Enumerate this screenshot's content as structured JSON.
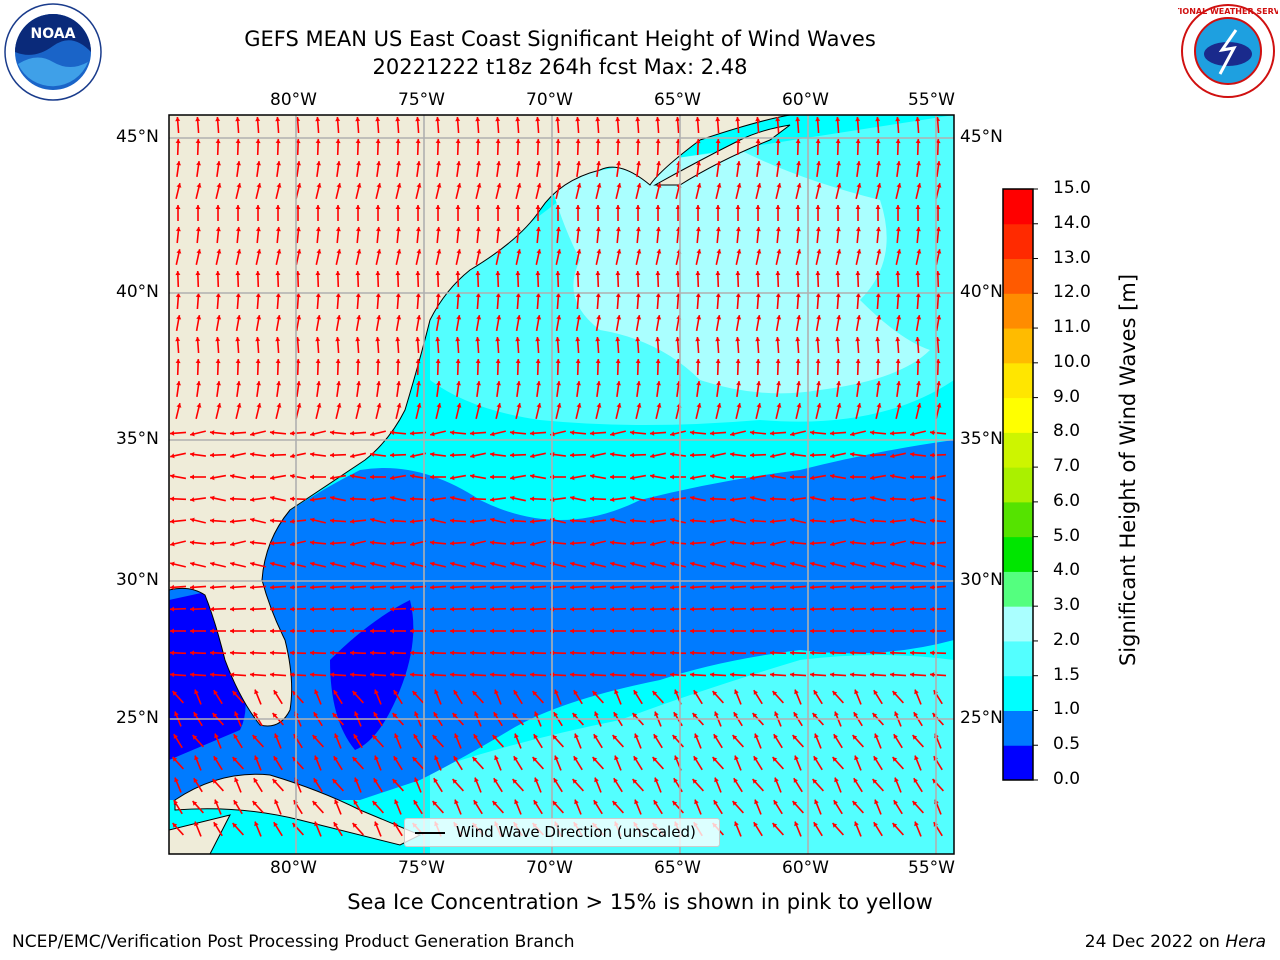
{
  "title": {
    "line1": "GEFS MEAN US East Coast Significant Height of Wind Waves",
    "line2": "20221222 t18z 264h fcst   Max: 2.48"
  },
  "map": {
    "lon_ticks": [
      "80°W",
      "75°W",
      "70°W",
      "65°W",
      "60°W",
      "55°W"
    ],
    "lat_ticks": [
      "45°N",
      "40°N",
      "35°N",
      "30°N",
      "25°N"
    ],
    "legend_label": "Wind Wave Direction (unscaled)",
    "colors": {
      "land": "#efecd9",
      "band_0_0.5": "#0000ff",
      "band_0.5_1": "#007bff",
      "band_1_1.5": "#00ffff",
      "band_1.5_2": "#53ffff",
      "band_2_3": "#aaffff",
      "arrow": "#ff0000",
      "grid": "#b0b0b0"
    }
  },
  "colorbar": {
    "label": "Significant Height of Wind Waves [m]",
    "ticks": [
      "15.0",
      "14.0",
      "13.0",
      "12.0",
      "11.0",
      "10.0",
      "9.0",
      "8.0",
      "7.0",
      "6.0",
      "5.0",
      "4.0",
      "3.0",
      "2.0",
      "1.5",
      "1.0",
      "0.5",
      "0.0"
    ],
    "colors": [
      "#0000ff",
      "#007bff",
      "#00ffff",
      "#53ffff",
      "#aaffff",
      "#54ff7f",
      "#00e600",
      "#55e300",
      "#aaf000",
      "#cdf500",
      "#ffff00",
      "#ffe600",
      "#ffbb00",
      "#ff8c00",
      "#ff5a00",
      "#ff2a00",
      "#ff0000"
    ]
  },
  "note": "Sea Ice Concentration > 15% is shown in pink to yellow",
  "footer": {
    "left": "NCEP/EMC/Verification Post Processing Product Generation Branch",
    "date": "24 Dec 2022 on ",
    "machine": "Hera"
  },
  "logos": {
    "noaa_text": "NOAA",
    "nws_text": "NATIONAL WEATHER SERVICE"
  }
}
